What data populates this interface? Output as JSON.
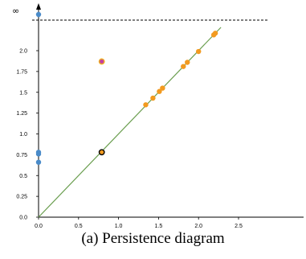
{
  "caption": "(a) Persistence diagram",
  "chart_data": {
    "type": "scatter",
    "infinity_label": "∞",
    "infinity_line_value": 2.37,
    "xlim": [
      0,
      2.6
    ],
    "ylim": [
      0,
      2.37
    ],
    "x_ticks": [
      "0.0",
      "0.5",
      "1.0",
      "1.5",
      "2.0",
      "2.5"
    ],
    "y_ticks": [
      "0.0",
      "0.25",
      "0.5",
      "0.75",
      "1.0",
      "1.25",
      "1.5",
      "1.75",
      "2.0"
    ],
    "grid": false,
    "diagonal": {
      "from": [
        0,
        0
      ],
      "to": [
        2.28,
        2.28
      ],
      "color": "#6a9e4f"
    },
    "series": [
      {
        "color": "#4a8bc9",
        "points": [
          {
            "x": 0.0,
            "y": 2.45,
            "infinite": true
          },
          {
            "x": 0.0,
            "y": 0.78
          },
          {
            "x": 0.0,
            "y": 0.76
          },
          {
            "x": 0.0,
            "y": 0.66
          }
        ]
      },
      {
        "color": "#f29a1f",
        "points": [
          {
            "x": 1.34,
            "y": 1.35
          },
          {
            "x": 1.43,
            "y": 1.43
          },
          {
            "x": 1.51,
            "y": 1.51
          },
          {
            "x": 1.55,
            "y": 1.55
          },
          {
            "x": 1.81,
            "y": 1.81
          },
          {
            "x": 1.86,
            "y": 1.86
          },
          {
            "x": 2.0,
            "y": 1.99
          },
          {
            "x": 2.19,
            "y": 2.19
          },
          {
            "x": 2.21,
            "y": 2.21
          }
        ]
      },
      {
        "color": "#c43fa0",
        "edge_color": "#f0b020",
        "points": [
          {
            "x": 0.79,
            "y": 1.87
          }
        ]
      },
      {
        "color": "#f29a1f",
        "edge_color": "#000000",
        "points": [
          {
            "x": 0.79,
            "y": 0.78
          }
        ]
      }
    ]
  }
}
